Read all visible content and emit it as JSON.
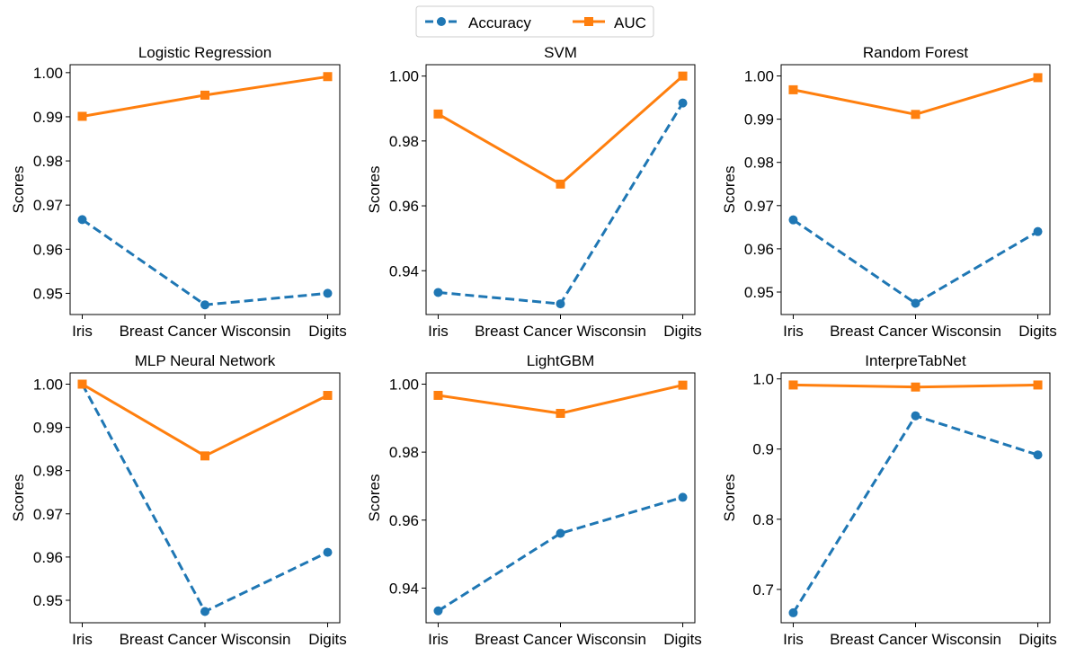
{
  "legend": {
    "position": "top-center",
    "entries": [
      {
        "label": "Accuracy",
        "color": "#1f77b4",
        "style": "dashed",
        "marker": "circle"
      },
      {
        "label": "AUC",
        "color": "#ff7f0e",
        "style": "solid",
        "marker": "square"
      }
    ]
  },
  "chart_data": [
    {
      "type": "line",
      "title": "Logistic Regression",
      "ylabel": "Scores",
      "categories": [
        "Iris",
        "Breast Cancer Wisconsin",
        "Digits"
      ],
      "ylim": [
        0.9452,
        1.0018
      ],
      "yticks": [
        "0.95",
        "0.96",
        "0.97",
        "0.98",
        "0.99",
        "1.00"
      ],
      "series": [
        {
          "name": "Accuracy",
          "values": [
            0.9667,
            0.9474,
            0.95
          ]
        },
        {
          "name": "AUC",
          "values": [
            0.9901,
            0.9949,
            0.9991
          ]
        }
      ]
    },
    {
      "type": "line",
      "title": "SVM",
      "ylabel": "Scores",
      "categories": [
        "Iris",
        "Breast Cancer Wisconsin",
        "Digits"
      ],
      "ylim": [
        0.9265,
        1.0035
      ],
      "yticks": [
        "0.94",
        "0.96",
        "0.98",
        "1.00"
      ],
      "series": [
        {
          "name": "Accuracy",
          "values": [
            0.9333,
            0.9298,
            0.9917
          ]
        },
        {
          "name": "AUC",
          "values": [
            0.9883,
            0.9667,
            1.0
          ]
        }
      ]
    },
    {
      "type": "line",
      "title": "Random Forest",
      "ylabel": "Scores",
      "categories": [
        "Iris",
        "Breast Cancer Wisconsin",
        "Digits"
      ],
      "ylim": [
        0.9448,
        1.0026
      ],
      "yticks": [
        "0.95",
        "0.96",
        "0.97",
        "0.98",
        "0.99",
        "1.00"
      ],
      "series": [
        {
          "name": "Accuracy",
          "values": [
            0.9667,
            0.9474,
            0.964
          ]
        },
        {
          "name": "AUC",
          "values": [
            0.9968,
            0.9911,
            0.9996
          ]
        }
      ]
    },
    {
      "type": "line",
      "title": "MLP Neural Network",
      "ylabel": "Scores",
      "categories": [
        "Iris",
        "Breast Cancer Wisconsin",
        "Digits"
      ],
      "ylim": [
        0.9448,
        1.0026
      ],
      "yticks": [
        "0.95",
        "0.96",
        "0.97",
        "0.98",
        "0.99",
        "1.00"
      ],
      "series": [
        {
          "name": "Accuracy",
          "values": [
            1.0,
            0.9474,
            0.9611
          ]
        },
        {
          "name": "AUC",
          "values": [
            1.0,
            0.9834,
            0.9974
          ]
        }
      ]
    },
    {
      "type": "line",
      "title": "LightGBM",
      "ylabel": "Scores",
      "categories": [
        "Iris",
        "Breast Cancer Wisconsin",
        "Digits"
      ],
      "ylim": [
        0.9298,
        1.0033
      ],
      "yticks": [
        "0.94",
        "0.96",
        "0.98",
        "1.00"
      ],
      "series": [
        {
          "name": "Accuracy",
          "values": [
            0.9333,
            0.9561,
            0.9667
          ]
        },
        {
          "name": "AUC",
          "values": [
            0.9967,
            0.9914,
            0.9997
          ]
        }
      ]
    },
    {
      "type": "line",
      "title": "InterpreTabNet",
      "ylabel": "Scores",
      "categories": [
        "Iris",
        "Breast Cancer Wisconsin",
        "Digits"
      ],
      "ylim": [
        0.6525,
        1.0085
      ],
      "yticks": [
        "0.7",
        "0.8",
        "0.9",
        "1.0"
      ],
      "series": [
        {
          "name": "Accuracy",
          "values": [
            0.6667,
            0.9474,
            0.8917
          ]
        },
        {
          "name": "AUC",
          "values": [
            0.9913,
            0.9884,
            0.9913
          ]
        }
      ]
    }
  ]
}
